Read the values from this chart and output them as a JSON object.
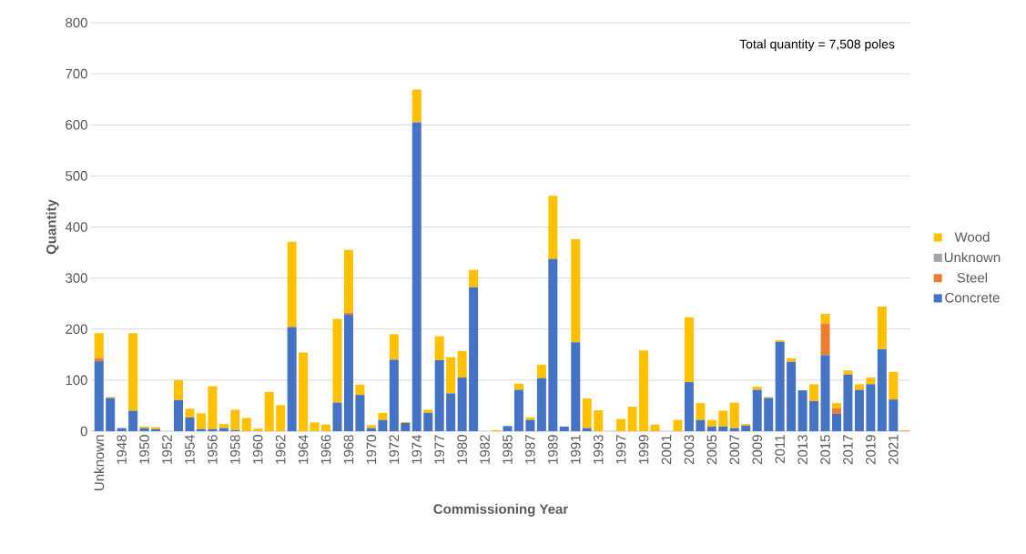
{
  "chart_data": {
    "type": "bar",
    "stacked": true,
    "xlabel": "Commissioning Year",
    "ylabel": "Quantity",
    "categories": [
      "Unknown",
      null,
      "1948",
      null,
      "1950",
      null,
      "1952",
      null,
      "1954",
      null,
      "1956",
      null,
      "1958",
      null,
      "1960",
      null,
      "1962",
      null,
      "1964",
      null,
      "1966",
      null,
      "1968",
      null,
      "1970",
      null,
      "1972",
      null,
      "1974",
      null,
      "1977",
      null,
      "1980",
      null,
      "1982",
      null,
      "1985",
      null,
      "1987",
      null,
      "1989",
      null,
      "1991",
      null,
      "1993",
      null,
      "1997",
      null,
      "1999",
      null,
      "2001",
      null,
      "2003",
      null,
      "2005",
      null,
      "2007",
      null,
      "2009",
      null,
      "2011",
      null,
      "2013",
      null,
      "2015",
      null,
      "2017",
      null,
      "2019",
      null,
      "2021",
      null
    ],
    "series": [
      {
        "name": "Concrete",
        "color": "#4472c4",
        "values": [
          137,
          65,
          6,
          40,
          6,
          4,
          0,
          61,
          27,
          4,
          4,
          6,
          2,
          0,
          0,
          0,
          0,
          204,
          0,
          0,
          0,
          56,
          228,
          71,
          6,
          22,
          140,
          16,
          605,
          36,
          139,
          74,
          105,
          282,
          0,
          0,
          10,
          81,
          22,
          104,
          337,
          9,
          174,
          6,
          0,
          0,
          0,
          0,
          0,
          0,
          0,
          0,
          96,
          22,
          9,
          9,
          6,
          11,
          81,
          65,
          175,
          136,
          80,
          59,
          149,
          34,
          111,
          81,
          92,
          161,
          62,
          0
        ]
      },
      {
        "name": "Steel",
        "color": "#ed7d31",
        "values": [
          6,
          0,
          0,
          0,
          0,
          0,
          0,
          0,
          0,
          0,
          0,
          0,
          0,
          0,
          0,
          0,
          0,
          0,
          0,
          0,
          0,
          0,
          4,
          0,
          0,
          0,
          0,
          0,
          0,
          0,
          0,
          0,
          0,
          0,
          0,
          0,
          0,
          0,
          0,
          0,
          0,
          0,
          0,
          0,
          0,
          0,
          0,
          0,
          0,
          0,
          0,
          0,
          0,
          0,
          0,
          0,
          0,
          0,
          0,
          0,
          0,
          0,
          0,
          0,
          62,
          11,
          0,
          0,
          0,
          0,
          0,
          0
        ]
      },
      {
        "name": "Unknown",
        "color": "#a5a5a5",
        "values": [
          0,
          0,
          0,
          0,
          0,
          0,
          0,
          0,
          0,
          0,
          0,
          0,
          0,
          0,
          0,
          0,
          0,
          0,
          0,
          0,
          0,
          0,
          0,
          0,
          0,
          0,
          0,
          0,
          0,
          0,
          0,
          0,
          0,
          0,
          0,
          0,
          0,
          0,
          0,
          0,
          0,
          0,
          0,
          0,
          0,
          0,
          0,
          0,
          0,
          0,
          0,
          0,
          0,
          0,
          0,
          0,
          0,
          0,
          0,
          0,
          0,
          0,
          0,
          0,
          0,
          0,
          0,
          0,
          0,
          0,
          0,
          0
        ]
      },
      {
        "name": "Wood",
        "color": "#ffc000",
        "values": [
          49,
          2,
          0,
          152,
          3,
          4,
          0,
          39,
          17,
          31,
          84,
          8,
          40,
          26,
          5,
          77,
          51,
          167,
          154,
          17,
          13,
          164,
          123,
          20,
          6,
          14,
          50,
          2,
          64,
          6,
          47,
          71,
          52,
          34,
          0,
          2,
          0,
          12,
          5,
          26,
          124,
          0,
          202,
          58,
          41,
          0,
          24,
          48,
          158,
          13,
          0,
          22,
          127,
          33,
          13,
          31,
          50,
          3,
          6,
          2,
          3,
          7,
          0,
          33,
          19,
          10,
          8,
          11,
          13,
          83,
          54,
          2
        ]
      }
    ],
    "ylim": [
      0,
      800
    ],
    "yticks": [
      0,
      100,
      200,
      300,
      400,
      500,
      600,
      700,
      800
    ],
    "grid": "y",
    "legend": "right",
    "annotations": [
      "Total quantity = 7,508 poles"
    ]
  }
}
